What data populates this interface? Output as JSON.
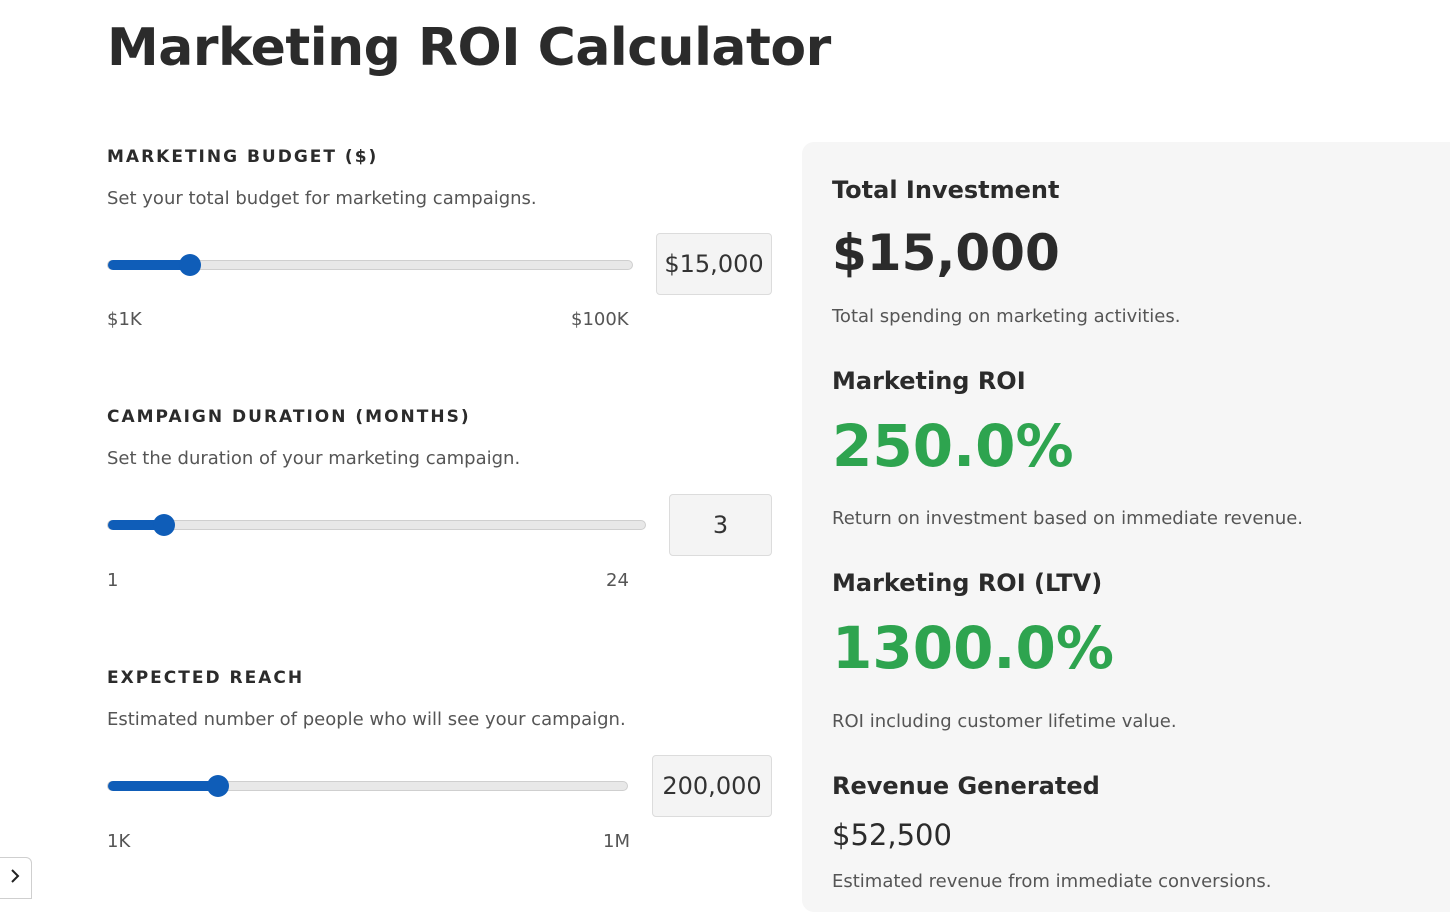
{
  "page": {
    "title": "Marketing ROI Calculator"
  },
  "inputs": {
    "budget": {
      "label": "MARKETING BUDGET ($)",
      "description": "Set your total budget for marketing campaigns.",
      "value": "$15,000",
      "min_label": "$1K",
      "max_label": "$100K",
      "fraction": 0.157
    },
    "duration": {
      "label": "CAMPAIGN DURATION (MONTHS)",
      "description": "Set the duration of your marketing campaign.",
      "value": "3",
      "min_label": "1",
      "max_label": "24",
      "fraction": 0.104
    },
    "reach": {
      "label": "EXPECTED REACH",
      "description": "Estimated number of people who will see your campaign.",
      "value": "200,000",
      "min_label": "1K",
      "max_label": "1M",
      "fraction": 0.212
    }
  },
  "results": {
    "investment": {
      "heading": "Total Investment",
      "value": "$15,000",
      "description": "Total spending on marketing activities."
    },
    "roi": {
      "heading": "Marketing ROI",
      "value": "250.0%",
      "description": "Return on investment based on immediate revenue."
    },
    "roi_ltv": {
      "heading": "Marketing ROI (LTV)",
      "value": "1300.0%",
      "description": "ROI including customer lifetime value."
    },
    "revenue": {
      "heading": "Revenue Generated",
      "value": "$52,500",
      "description": "Estimated revenue from immediate conversions."
    }
  },
  "colors": {
    "accent": "#0f5db8",
    "positive": "#2ea44f",
    "text": "#2b2b2b",
    "panel_bg": "#f6f6f6"
  },
  "icons": {
    "sidebar_toggle": "chevron-right-icon"
  }
}
